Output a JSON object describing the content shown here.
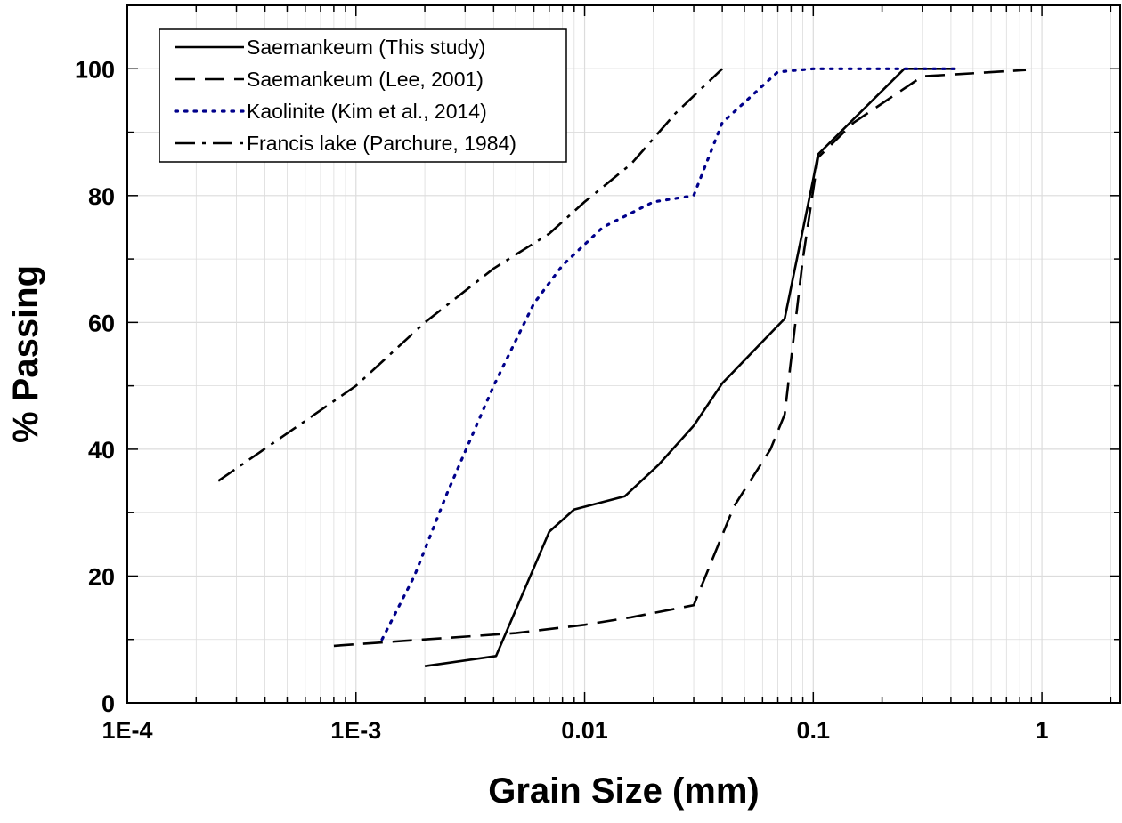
{
  "chart_data": {
    "type": "line",
    "xlabel": "Grain Size (mm)",
    "ylabel": "% Passing",
    "xscale": "log",
    "xlim": [
      0.0001,
      2.2
    ],
    "ylim": [
      0,
      110
    ],
    "x_ticks": [
      {
        "value": 0.0001,
        "label": "1E-4"
      },
      {
        "value": 0.001,
        "label": "1E-3"
      },
      {
        "value": 0.01,
        "label": "0.01"
      },
      {
        "value": 0.1,
        "label": "0.1"
      },
      {
        "value": 1,
        "label": "1"
      }
    ],
    "y_ticks": [
      {
        "value": 0,
        "label": "0"
      },
      {
        "value": 20,
        "label": "20"
      },
      {
        "value": 40,
        "label": "40"
      },
      {
        "value": 60,
        "label": "60"
      },
      {
        "value": 80,
        "label": "80"
      },
      {
        "value": 100,
        "label": "100"
      }
    ],
    "grid": true,
    "legend_position": "top-left",
    "series": [
      {
        "name": "Saemankeum (This study)",
        "style": "solid",
        "color": "#000000",
        "x": [
          0.002,
          0.0041,
          0.007,
          0.009,
          0.015,
          0.021,
          0.03,
          0.04,
          0.075,
          0.1,
          0.105,
          0.25,
          0.42
        ],
        "y": [
          5.8,
          7.4,
          27,
          30.5,
          32.6,
          37.5,
          43.7,
          50.4,
          60.6,
          82.6,
          86.5,
          100,
          100
        ]
      },
      {
        "name": "Saemankeum (Lee, 2001)",
        "style": "dashed",
        "color": "#000000",
        "x": [
          0.0008,
          0.002,
          0.005,
          0.01,
          0.016,
          0.03,
          0.045,
          0.065,
          0.075,
          0.09,
          0.105,
          0.15,
          0.3,
          0.85
        ],
        "y": [
          9,
          10,
          11,
          12.3,
          13.5,
          15.4,
          31,
          40,
          45.5,
          70,
          86,
          91.5,
          98.8,
          99.8
        ]
      },
      {
        "name": "Kaolinite (Kim et al., 2014)",
        "style": "dotted",
        "color": "#00008b",
        "x": [
          0.0013,
          0.0018,
          0.0025,
          0.004,
          0.006,
          0.008,
          0.012,
          0.02,
          0.03,
          0.04,
          0.07,
          0.1,
          0.42
        ],
        "y": [
          10,
          20,
          33,
          50,
          63,
          69,
          75,
          79,
          80,
          91.5,
          99.5,
          100,
          100
        ]
      },
      {
        "name": "Francis lake (Parchure, 1984)",
        "style": "dash-dot",
        "color": "#000000",
        "x": [
          0.00025,
          0.001,
          0.002,
          0.004,
          0.007,
          0.01,
          0.016,
          0.025,
          0.04
        ],
        "y": [
          35,
          50,
          60,
          68.5,
          74,
          79,
          85,
          93,
          100
        ]
      }
    ]
  },
  "colors": {
    "plot_background": "#ffffff",
    "grid_color": "#dcdcdc",
    "axis_color": "#000000"
  }
}
